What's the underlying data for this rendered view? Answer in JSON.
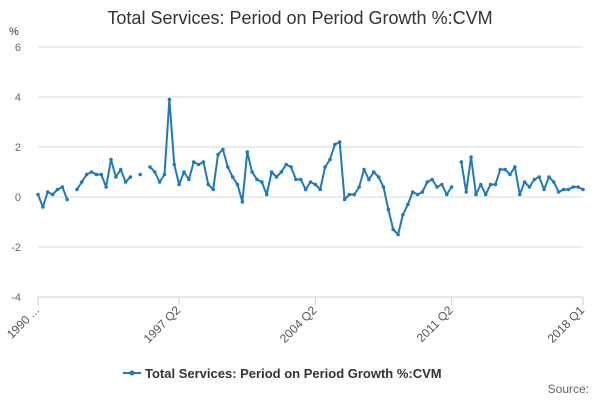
{
  "chart_data": {
    "type": "line",
    "title": "Total Services: Period on Period Growth %:CVM",
    "ylabel": "%",
    "xlabel": "",
    "ylim": [
      -4,
      6
    ],
    "y_ticks": [
      "6",
      "4",
      "2",
      "0",
      "-2",
      "-4"
    ],
    "y_tick_values": [
      6,
      4,
      2,
      0,
      -2,
      -4
    ],
    "x_ticks": [
      {
        "label": "1990 ...",
        "index": 0
      },
      {
        "label": "1997 Q2",
        "index": 29
      },
      {
        "label": "2004 Q2",
        "index": 57
      },
      {
        "label": "2011 Q2",
        "index": 85
      },
      {
        "label": "2018 Q1",
        "index": 112
      }
    ],
    "grid": true,
    "legend": "bottom-center",
    "series": [
      {
        "name": "Total Services: Period on Period Growth %:CVM",
        "color": "#1f7bb6",
        "values": [
          0.1,
          -0.4,
          0.2,
          0.1,
          0.3,
          0.4,
          -0.1,
          null,
          0.3,
          0.6,
          0.9,
          1.0,
          0.9,
          0.9,
          0.4,
          1.5,
          0.8,
          1.1,
          0.6,
          0.8,
          null,
          0.9,
          null,
          1.2,
          1.0,
          0.6,
          0.9,
          3.9,
          1.3,
          0.5,
          1.0,
          0.7,
          1.4,
          1.3,
          1.4,
          0.5,
          0.3,
          1.7,
          1.9,
          1.2,
          0.8,
          0.5,
          -0.2,
          1.8,
          1.0,
          0.7,
          0.6,
          0.1,
          1.0,
          0.8,
          1.0,
          1.3,
          1.2,
          0.7,
          0.7,
          0.3,
          0.6,
          0.5,
          0.3,
          1.2,
          1.5,
          2.1,
          2.2,
          -0.1,
          0.1,
          0.1,
          0.4,
          1.1,
          0.7,
          1.0,
          0.8,
          0.4,
          -0.5,
          -1.3,
          -1.5,
          -0.7,
          -0.3,
          0.2,
          0.1,
          0.2,
          0.6,
          0.7,
          0.4,
          0.5,
          0.1,
          0.4,
          null,
          1.4,
          0.2,
          1.6,
          0.1,
          0.5,
          0.1,
          0.5,
          0.5,
          1.1,
          1.1,
          0.9,
          1.2,
          0.1,
          0.6,
          0.4,
          0.7,
          0.8,
          0.3,
          0.8,
          0.6,
          0.2,
          0.3,
          0.3,
          0.4,
          0.4,
          0.3
        ]
      }
    ],
    "source_label": "Source:"
  }
}
